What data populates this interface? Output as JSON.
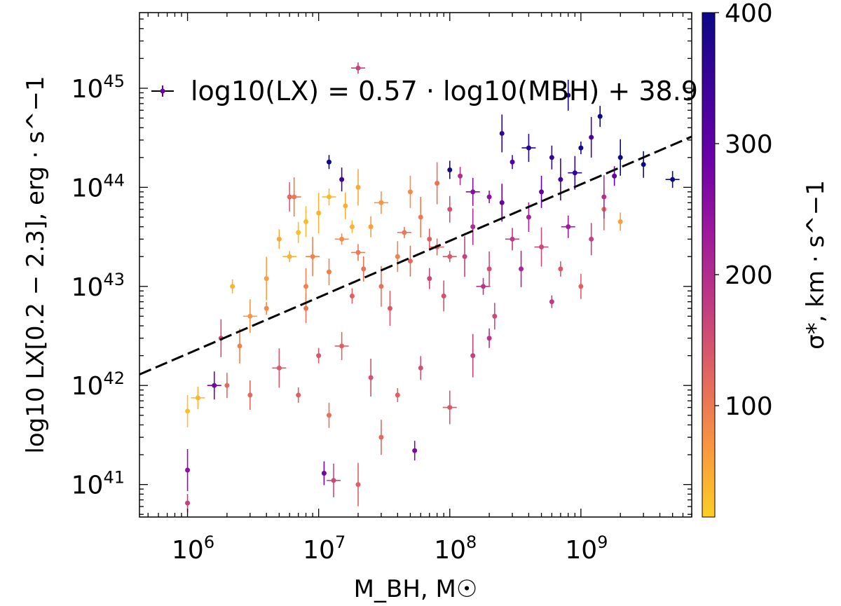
{
  "chart_data": {
    "type": "scatter",
    "title": "",
    "xlabel": "M_BH, M☉",
    "ylabel": "log10 LX[0.2 − 2.3], erg · s^−1",
    "x_scale": "log",
    "y_scale": "log",
    "xlim": [
      430000.0,
      7000000000.0
    ],
    "ylim": [
      4.7e+40,
      5.8e+45
    ],
    "x_ticks": [
      "10^6",
      "10^7",
      "10^8",
      "10^9"
    ],
    "y_ticks": [
      "10^41",
      "10^42",
      "10^43",
      "10^44",
      "10^45"
    ],
    "grid": false,
    "legend": {
      "position": "top",
      "label": "log10(LX) = 0.57 · log10(MBH) + 38.9"
    },
    "fit_line": {
      "slope": 0.57,
      "intercept": 38.9,
      "style": "dashed",
      "color": "#000000"
    },
    "colorbar": {
      "label": "σ*, km · s^−1",
      "ticks": [
        100,
        200,
        300,
        400
      ],
      "range": [
        15,
        400
      ],
      "colormap": "plasma_r",
      "stops": [
        "#fcce25",
        "#f89540",
        "#e16462",
        "#bf3984",
        "#9c179e",
        "#6a00a8",
        "#3b049a",
        "#0d0887"
      ]
    },
    "points_columns": [
      "M_BH",
      "L_X",
      "sigma"
    ],
    "points": [
      [
        20000000.0,
        1.6e+45,
        170
      ],
      [
        1400000000.0,
        5.2e+44,
        400
      ],
      [
        800000000.0,
        8.5e+44,
        380
      ],
      [
        1200000000.0,
        3.2e+44,
        330
      ],
      [
        5000000000.0,
        1.2e+44,
        400
      ],
      [
        3000000000.0,
        1.7e+44,
        400
      ],
      [
        2000000000.0,
        2e+44,
        400
      ],
      [
        1000000000.0,
        2.5e+44,
        390
      ],
      [
        1200000.0,
        7.5e+41,
        40
      ],
      [
        1000000.0,
        5.5e+41,
        30
      ],
      [
        1000000.0,
        1.4e+41,
        250
      ],
      [
        1000000.0,
        6.5e+40,
        170
      ],
      [
        1600000.0,
        1e+42,
        280
      ],
      [
        1800000.0,
        3e+42,
        160
      ],
      [
        2200000.0,
        1e+43,
        40
      ],
      [
        11000000.0,
        1.3e+41,
        280
      ],
      [
        13000000.0,
        1.1e+41,
        160
      ],
      [
        20000000.0,
        1e+41,
        130
      ],
      [
        54000000.0,
        2.2e+41,
        270
      ],
      [
        6000000.0,
        8e+43,
        130
      ],
      [
        6500000.0,
        8e+43,
        100
      ],
      [
        10000000.0,
        2e+42,
        140
      ],
      [
        12000000.0,
        5e+41,
        110
      ],
      [
        30000000.0,
        3e+41,
        120
      ],
      [
        15000000.0,
        3e+43,
        80
      ],
      [
        25000000.0,
        4e+43,
        60
      ],
      [
        40000000.0,
        2e+43,
        90
      ],
      [
        60000000.0,
        5e+43,
        100
      ],
      [
        80000000.0,
        2.5e+43,
        120
      ],
      [
        100000000.0,
        6e+43,
        150
      ],
      [
        150000000.0,
        4e+43,
        200
      ],
      [
        200000000.0,
        8e+43,
        250
      ],
      [
        300000000.0,
        3e+43,
        180
      ],
      [
        500000000.0,
        9e+43,
        300
      ],
      [
        700000000.0,
        1.2e+44,
        340
      ],
      [
        100000000.0,
        1.5e+44,
        390
      ],
      [
        400000000.0,
        2.5e+44,
        370
      ],
      [
        250000000.0,
        3.5e+44,
        360
      ],
      [
        12000000.0,
        1.8e+44,
        390
      ],
      [
        15000000.0,
        1.2e+44,
        350
      ],
      [
        3000000.0,
        5e+42,
        70
      ],
      [
        4000000.0,
        1.2e+43,
        60
      ],
      [
        5000000.0,
        3e+43,
        50
      ],
      [
        8000000.0,
        6e+42,
        110
      ],
      [
        9000000.0,
        2e+43,
        90
      ],
      [
        18000000.0,
        8e+42,
        130
      ],
      [
        22000000.0,
        1.5e+43,
        110
      ],
      [
        35000000.0,
        6e+42,
        140
      ],
      [
        45000000.0,
        3.5e+43,
        100
      ],
      [
        70000000.0,
        1.2e+43,
        160
      ],
      [
        90000000.0,
        8e+42,
        150
      ],
      [
        130000000.0,
        2e+43,
        170
      ],
      [
        180000000.0,
        1e+43,
        190
      ],
      [
        220000000.0,
        5e+42,
        160
      ],
      [
        350000000.0,
        1.5e+43,
        210
      ],
      [
        600000000.0,
        7e+42,
        180
      ],
      [
        800000000.0,
        4e+43,
        230
      ],
      [
        1200000000.0,
        3e+43,
        170
      ],
      [
        1500000000.0,
        6e+43,
        120
      ],
      [
        2000000000.0,
        4.5e+43,
        60
      ],
      [
        15000000.0,
        2.5e+42,
        130
      ],
      [
        25000000.0,
        1.2e+42,
        150
      ],
      [
        40000000.0,
        8e+41,
        130
      ],
      [
        60000000.0,
        1.5e+42,
        150
      ],
      [
        100000000.0,
        6e+41,
        140
      ],
      [
        150000000.0,
        2e+42,
        170
      ],
      [
        200000000.0,
        3e+42,
        190
      ],
      [
        3000000.0,
        8e+41,
        120
      ],
      [
        5000000.0,
        1.5e+42,
        140
      ],
      [
        7000000.0,
        8e+41,
        130
      ],
      [
        2000000.0,
        1e+42,
        120
      ],
      [
        2500000.0,
        2.5e+42,
        90
      ],
      [
        6000000.0,
        2e+43,
        40
      ],
      [
        7000000.0,
        3.5e+43,
        30
      ],
      [
        8000000.0,
        4.5e+43,
        35
      ],
      [
        10000000.0,
        5.5e+43,
        40
      ],
      [
        12000000.0,
        8e+43,
        35
      ],
      [
        16000000.0,
        6.5e+43,
        45
      ],
      [
        20000000.0,
        1e+44,
        50
      ],
      [
        18000000.0,
        4e+43,
        40
      ],
      [
        30000000.0,
        7e+43,
        70
      ],
      [
        50000000.0,
        9e+43,
        80
      ],
      [
        80000000.0,
        1.1e+44,
        110
      ],
      [
        120000000.0,
        1.3e+44,
        200
      ],
      [
        150000000.0,
        9e+43,
        260
      ],
      [
        250000000.0,
        7e+43,
        290
      ],
      [
        300000000.0,
        1.8e+44,
        320
      ],
      [
        600000000.0,
        2e+44,
        350
      ],
      [
        900000000.0,
        1.4e+44,
        360
      ],
      [
        1500000000.0,
        8e+43,
        200
      ],
      [
        1800000000.0,
        1.3e+44,
        300
      ],
      [
        400000000.0,
        5e+43,
        220
      ],
      [
        500000000.0,
        2.5e+43,
        160
      ],
      [
        700000000.0,
        1.5e+43,
        140
      ],
      [
        1000000000.0,
        1e+43,
        130
      ],
      [
        200000000.0,
        1.5e+43,
        150
      ],
      [
        100000000.0,
        2e+43,
        140
      ],
      [
        70000000.0,
        3e+43,
        130
      ],
      [
        50000000.0,
        1.8e+43,
        120
      ],
      [
        30000000.0,
        1e+43,
        110
      ],
      [
        20000000.0,
        2.2e+43,
        100
      ],
      [
        12000000.0,
        1.4e+43,
        95
      ],
      [
        8000000.0,
        1e+43,
        90
      ],
      [
        4000000.0,
        6e+42,
        85
      ]
    ]
  }
}
